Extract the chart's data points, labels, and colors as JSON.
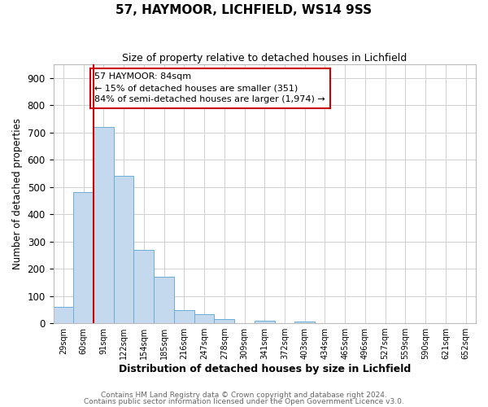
{
  "title": "57, HAYMOOR, LICHFIELD, WS14 9SS",
  "subtitle": "Size of property relative to detached houses in Lichfield",
  "xlabel": "Distribution of detached houses by size in Lichfield",
  "ylabel": "Number of detached properties",
  "bar_labels": [
    "29sqm",
    "60sqm",
    "91sqm",
    "122sqm",
    "154sqm",
    "185sqm",
    "216sqm",
    "247sqm",
    "278sqm",
    "309sqm",
    "341sqm",
    "372sqm",
    "403sqm",
    "434sqm",
    "465sqm",
    "496sqm",
    "527sqm",
    "559sqm",
    "590sqm",
    "621sqm",
    "652sqm"
  ],
  "bar_values": [
    60,
    480,
    720,
    540,
    270,
    170,
    48,
    33,
    15,
    0,
    8,
    0,
    6,
    0,
    0,
    0,
    0,
    0,
    0,
    0,
    0
  ],
  "bar_color": "#c5d9ee",
  "bar_edge_color": "#6aaed6",
  "grid_color": "#d0d0d0",
  "background_color": "#ffffff",
  "property_line_color": "#cc0000",
  "annotation_text": "57 HAYMOOR: 84sqm\n← 15% of detached houses are smaller (351)\n84% of semi-detached houses are larger (1,974) →",
  "annotation_box_color": "#cc0000",
  "ylim": [
    0,
    950
  ],
  "yticks": [
    0,
    100,
    200,
    300,
    400,
    500,
    600,
    700,
    800,
    900
  ],
  "footer_line1": "Contains HM Land Registry data © Crown copyright and database right 2024.",
  "footer_line2": "Contains public sector information licensed under the Open Government Licence v3.0."
}
